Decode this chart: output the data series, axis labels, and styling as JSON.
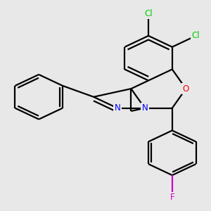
{
  "background_color": "#e8e8e8",
  "bond_color": "#000000",
  "atom_colors": {
    "N": "#0000ff",
    "O": "#ff0000",
    "Cl": "#00cc00",
    "F": "#cc00cc"
  },
  "figsize": [
    3.0,
    3.0
  ],
  "dpi": 100
}
